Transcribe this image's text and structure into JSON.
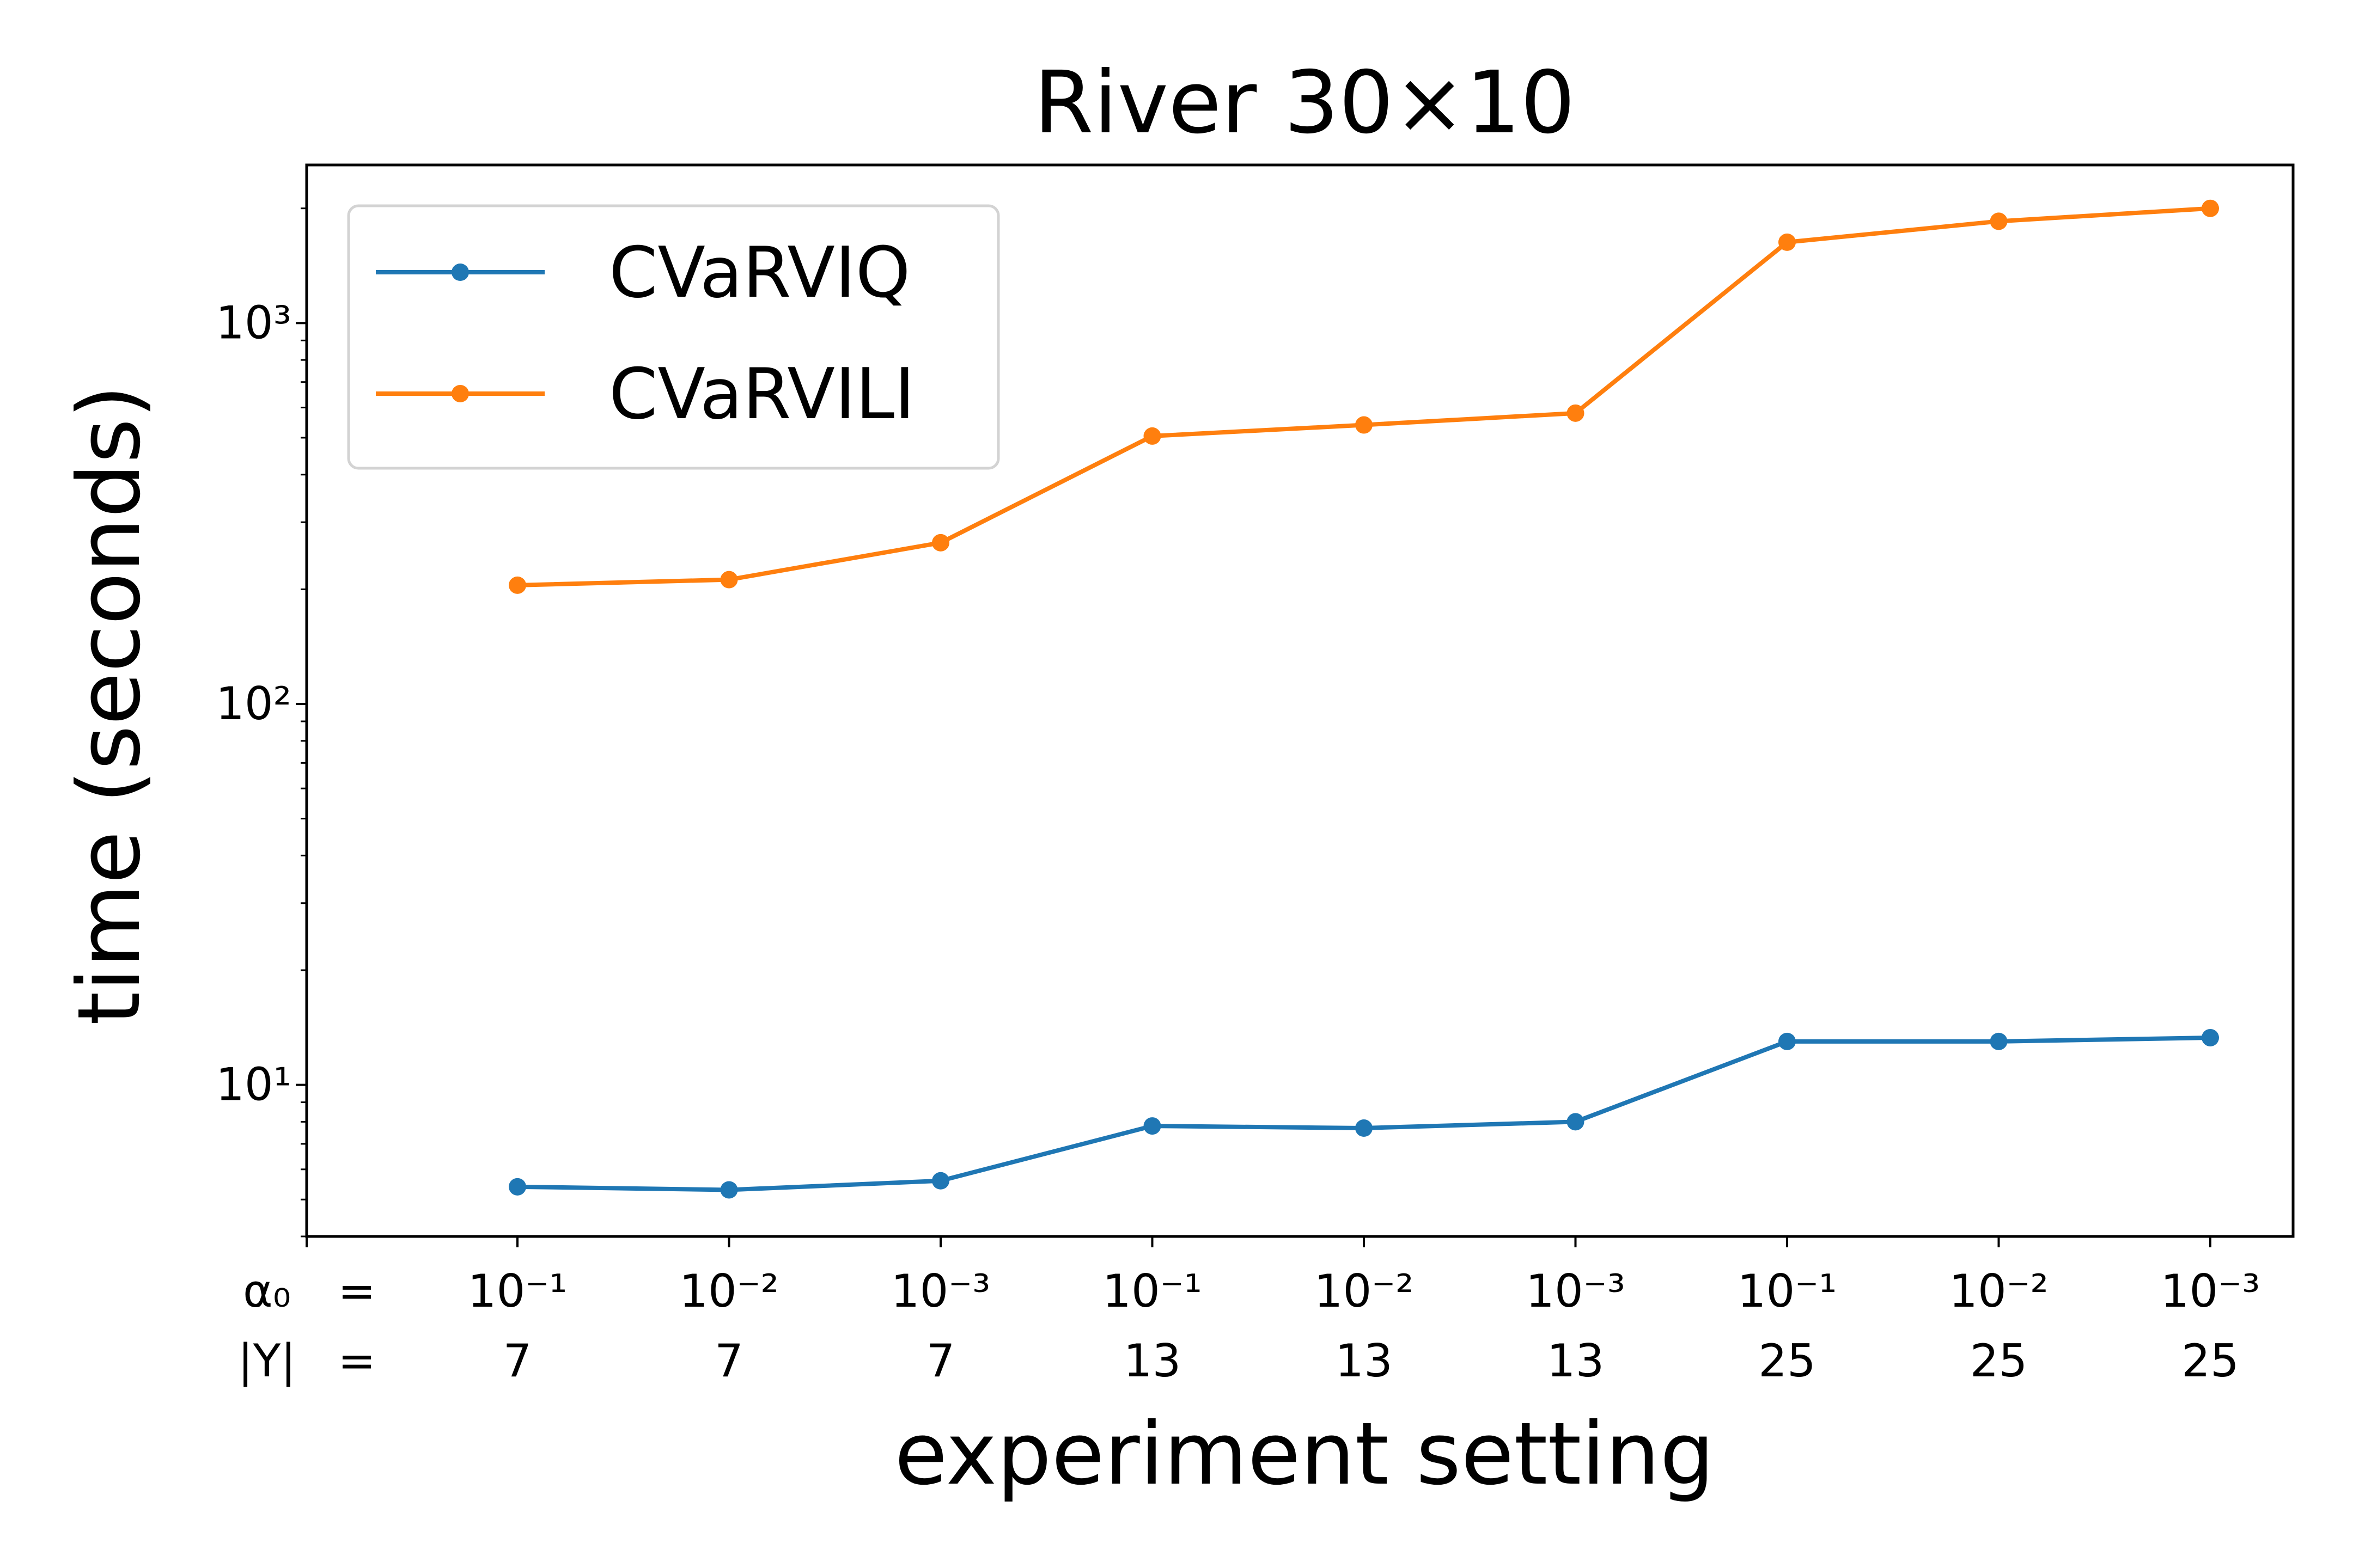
{
  "chart_data": {
    "type": "line",
    "title": "River 30×10",
    "xlabel": "experiment setting",
    "ylabel": "time (seconds)",
    "yscale": "log",
    "ylim": [
      4,
      2600
    ],
    "grid": false,
    "legend_position": "top-left",
    "row_labels": [
      {
        "symbol": "α₀",
        "eq": "="
      },
      {
        "symbol": "|Y|",
        "eq": "="
      }
    ],
    "categories": [
      {
        "alpha0": "10⁻¹",
        "Y": "7"
      },
      {
        "alpha0": "10⁻²",
        "Y": "7"
      },
      {
        "alpha0": "10⁻³",
        "Y": "7"
      },
      {
        "alpha0": "10⁻¹",
        "Y": "13"
      },
      {
        "alpha0": "10⁻²",
        "Y": "13"
      },
      {
        "alpha0": "10⁻³",
        "Y": "13"
      },
      {
        "alpha0": "10⁻¹",
        "Y": "25"
      },
      {
        "alpha0": "10⁻²",
        "Y": "25"
      },
      {
        "alpha0": "10⁻³",
        "Y": "25"
      }
    ],
    "y_ticks": [
      {
        "value": 10,
        "label": "10¹"
      },
      {
        "value": 100,
        "label": "10²"
      },
      {
        "value": 1000,
        "label": "10³"
      }
    ],
    "series": [
      {
        "name": "CVaRVIQ",
        "color": "#1f77b4",
        "values": [
          5.4,
          5.3,
          5.6,
          7.8,
          7.7,
          8.0,
          13.0,
          13.0,
          13.3
        ]
      },
      {
        "name": "CVaRVILI",
        "color": "#ff7f0e",
        "values": [
          205,
          212,
          265,
          505,
          540,
          580,
          1630,
          1850,
          2000
        ]
      }
    ]
  }
}
